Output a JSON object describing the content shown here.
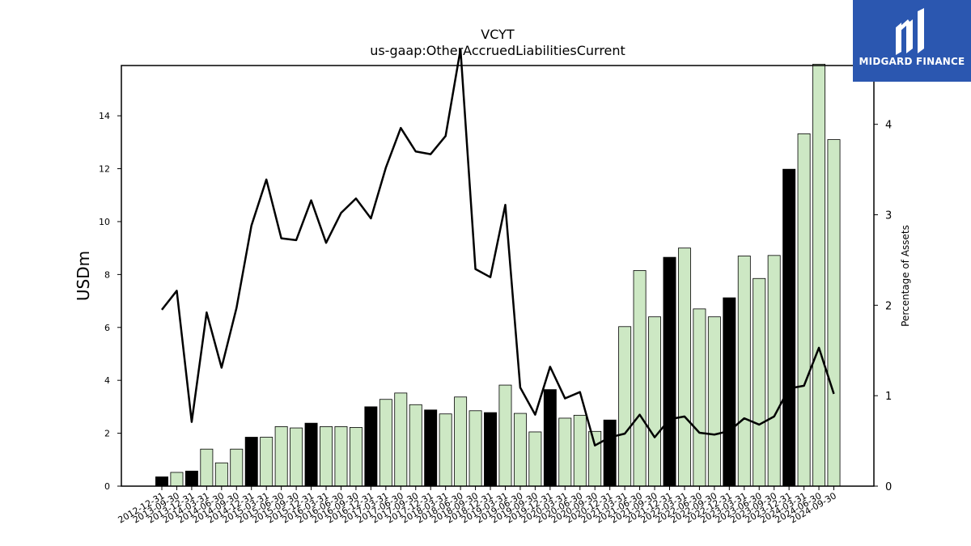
{
  "chart_data": {
    "type": "bar+line",
    "title": "VCYT",
    "subtitle": "us-gaap:OtherAccruedLiabilitiesCurrent",
    "ylabel": "USDm",
    "y2label": "Percentage of Assets",
    "ylim": [
      0,
      15.9
    ],
    "y2lim": [
      0,
      4.65
    ],
    "yticks": [
      0,
      2,
      4,
      6,
      8,
      10,
      12,
      14
    ],
    "y2ticks": [
      0,
      1,
      2,
      3,
      4
    ],
    "categories": [
      "2012-12-31",
      "2013-09-30",
      "2013-12-31",
      "2014-03-31",
      "2014-06-30",
      "2014-09-30",
      "2014-12-31",
      "2015-03-31",
      "2015-06-30",
      "2015-09-30",
      "2015-12-31",
      "2016-03-31",
      "2016-06-30",
      "2016-09-30",
      "2016-12-31",
      "2017-03-31",
      "2017-06-30",
      "2017-09-30",
      "2017-12-31",
      "2018-03-31",
      "2018-06-30",
      "2018-09-30",
      "2018-12-31",
      "2019-03-31",
      "2019-06-30",
      "2019-09-30",
      "2019-12-31",
      "2020-03-31",
      "2020-06-30",
      "2020-09-30",
      "2020-12-31",
      "2021-03-31",
      "2021-06-30",
      "2021-09-30",
      "2021-12-31",
      "2022-03-31",
      "2022-06-30",
      "2022-09-30",
      "2022-12-31",
      "2023-03-31",
      "2023-06-30",
      "2023-09-30",
      "2023-12-31",
      "2024-03-31",
      "2024-06-30",
      "2024-09-30"
    ],
    "bar_values": [
      0.35,
      0.52,
      0.57,
      1.4,
      0.88,
      1.4,
      1.85,
      1.85,
      2.25,
      2.2,
      2.38,
      2.25,
      2.25,
      2.22,
      3.0,
      3.28,
      3.52,
      3.08,
      2.88,
      2.73,
      3.37,
      2.85,
      2.78,
      3.82,
      2.75,
      2.05,
      3.65,
      2.57,
      2.68,
      2.07,
      2.5,
      6.03,
      8.15,
      6.4,
      8.65,
      9.0,
      6.7,
      6.4,
      7.12,
      8.7,
      7.85,
      8.72,
      11.98,
      13.32,
      15.95,
      13.1
    ],
    "bar_is_year_end": [
      true,
      false,
      true,
      false,
      false,
      false,
      true,
      false,
      false,
      false,
      true,
      false,
      false,
      false,
      true,
      false,
      false,
      false,
      true,
      false,
      false,
      false,
      true,
      false,
      false,
      false,
      true,
      false,
      false,
      false,
      true,
      false,
      false,
      false,
      true,
      false,
      false,
      false,
      true,
      false,
      false,
      false,
      true,
      false,
      false,
      false
    ],
    "line_values": [
      1.95,
      2.16,
      0.71,
      1.92,
      1.31,
      1.97,
      2.88,
      3.39,
      2.74,
      2.72,
      3.16,
      2.69,
      3.02,
      3.18,
      2.96,
      3.52,
      3.96,
      3.7,
      3.67,
      3.87,
      4.83,
      2.4,
      2.31,
      3.11,
      1.09,
      0.79,
      1.32,
      0.97,
      1.04,
      0.45,
      0.54,
      0.58,
      0.79,
      0.54,
      0.74,
      0.77,
      0.59,
      0.57,
      0.61,
      0.75,
      0.68,
      0.77,
      1.08,
      1.11,
      1.53,
      1.02
    ],
    "colors": {
      "bar_year_end": "#000000",
      "bar_quarter": "#cde8c4",
      "line": "#000000"
    },
    "grid": false
  },
  "logo": {
    "text": "MIDGARD FINANCE"
  }
}
